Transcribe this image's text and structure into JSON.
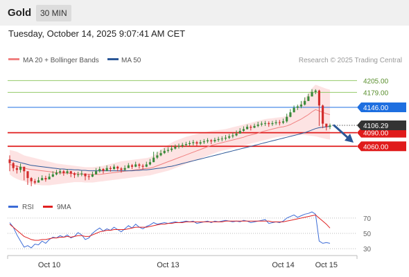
{
  "header": {
    "title": "Gold",
    "timeframe": "30 MIN"
  },
  "timestamp": "Tuesday, October 14, 2025 9:07:41 AM CET",
  "credit": "Research © 2025 Trading Central",
  "colors": {
    "ma20": "#f08080",
    "band": "#fcd9d9",
    "ma50": "#2b5797",
    "candle_up": "#3a8a3a",
    "candle_down": "#d22b2b",
    "resistance": "#92c967",
    "pivot": "#1e6fe0",
    "support": "#e01b1b",
    "rsi": "#3b6bd6",
    "rsi_ma": "#e02020",
    "arrow": "#2b5797",
    "price_box": "#333333"
  },
  "chart_data": [
    {
      "type": "candlestick",
      "legend": [
        {
          "name": "MA 20 + Bollinger Bands",
          "color": "#f08080"
        },
        {
          "name": "MA 50",
          "color": "#2b5797"
        }
      ],
      "legend_position": "top-left",
      "ylim": [
        3955,
        4230
      ],
      "x_labels": [
        {
          "label": "Oct 10",
          "index": 11
        },
        {
          "label": "Oct 13",
          "index": 44
        },
        {
          "label": "Oct 14",
          "index": 76
        },
        {
          "label": "Oct 15",
          "index": 88
        }
      ],
      "levels": [
        {
          "value": 4205.0,
          "label": "4205.00",
          "kind": "resistance"
        },
        {
          "value": 4179.0,
          "label": "4179.00",
          "kind": "resistance"
        },
        {
          "value": 4146.0,
          "label": "4146.00",
          "kind": "pivot"
        },
        {
          "value": 4090.0,
          "label": "4090.00",
          "kind": "support"
        },
        {
          "value": 4060.0,
          "label": "4060.00",
          "kind": "support"
        }
      ],
      "last_price": {
        "value": 4106.29,
        "label": "4106.29"
      },
      "projection": {
        "from": 4106,
        "to": 4065,
        "direction": "down"
      },
      "close": [
        4023,
        4012,
        4008,
        4015,
        4005,
        3990,
        3983,
        3980,
        3985,
        3990,
        3987,
        3993,
        3998,
        4002,
        4005,
        4001,
        4005,
        4000,
        3997,
        3998,
        4000,
        3994,
        3993,
        3998,
        4005,
        4010,
        4006,
        4012,
        4010,
        4015,
        4011,
        4008,
        4012,
        4018,
        4015,
        4020,
        4017,
        4015,
        4020,
        4025,
        4035,
        4040,
        4045,
        4050,
        4052,
        4055,
        4059,
        4061,
        4063,
        4065,
        4067,
        4069,
        4066,
        4069,
        4071,
        4073,
        4071,
        4074,
        4076,
        4077,
        4079,
        4082,
        4084,
        4088,
        4094,
        4098,
        4103,
        4101,
        4105,
        4108,
        4110,
        4111,
        4109,
        4111,
        4113,
        4112,
        4115,
        4125,
        4135,
        4145,
        4148,
        4152,
        4160,
        4170,
        4180,
        4183,
        4150,
        4110,
        4103,
        4106
      ],
      "high": [
        4040,
        4025,
        4018,
        4022,
        4012,
        4005,
        3992,
        3988,
        3992,
        3996,
        3995,
        4000,
        4005,
        4008,
        4010,
        4008,
        4010,
        4006,
        4003,
        4004,
        4006,
        4000,
        3999,
        4004,
        4012,
        4015,
        4012,
        4018,
        4016,
        4020,
        4017,
        4014,
        4018,
        4023,
        4021,
        4026,
        4023,
        4021,
        4026,
        4032,
        4048,
        4048,
        4052,
        4056,
        4058,
        4062,
        4064,
        4066,
        4068,
        4070,
        4072,
        4074,
        4072,
        4074,
        4076,
        4078,
        4076,
        4079,
        4081,
        4082,
        4085,
        4087,
        4090,
        4095,
        4100,
        4104,
        4108,
        4107,
        4110,
        4114,
        4115,
        4116,
        4115,
        4116,
        4118,
        4118,
        4121,
        4132,
        4142,
        4150,
        4152,
        4160,
        4168,
        4176,
        4186,
        4186,
        4185,
        4152,
        4110,
        4110
      ],
      "low": [
        4005,
        4005,
        4000,
        4002,
        3985,
        3975,
        3972,
        3976,
        3980,
        3985,
        3982,
        3988,
        3992,
        3996,
        3998,
        3995,
        3998,
        3992,
        3990,
        3992,
        3994,
        3985,
        3986,
        3992,
        3998,
        4002,
        4000,
        4005,
        4004,
        4008,
        4005,
        4002,
        4006,
        4012,
        4010,
        4014,
        4011,
        4009,
        4014,
        4018,
        4025,
        4032,
        4038,
        4043,
        4046,
        4048,
        4053,
        4055,
        4057,
        4059,
        4061,
        4062,
        4060,
        4063,
        4065,
        4067,
        4065,
        4068,
        4070,
        4071,
        4073,
        4076,
        4078,
        4082,
        4088,
        4092,
        4097,
        4095,
        4100,
        4102,
        4104,
        4105,
        4103,
        4105,
        4107,
        4106,
        4109,
        4112,
        4124,
        4135,
        4140,
        4144,
        4150,
        4160,
        4170,
        4175,
        4105,
        4100,
        4095,
        4098
      ],
      "ma20": [
        4020,
        4018,
        4016,
        4014,
        4012,
        4010,
        4009,
        4008,
        4007,
        4006,
        4005,
        4004,
        4003,
        4002,
        4001,
        4001,
        4001,
        4000,
        4000,
        3999,
        3999,
        3998,
        3998,
        3998,
        3998,
        3998,
        3999,
        4000,
        4001,
        4002,
        4003,
        4004,
        4005,
        4006,
        4007,
        4008,
        4009,
        4010,
        4011,
        4012,
        4014,
        4017,
        4020,
        4023,
        4026,
        4029,
        4032,
        4035,
        4038,
        4041,
        4044,
        4047,
        4050,
        4053,
        4056,
        4059,
        4062,
        4064,
        4066,
        4068,
        4070,
        4072,
        4074,
        4076,
        4078,
        4080,
        4083,
        4085,
        4087,
        4089,
        4092,
        4094,
        4096,
        4098,
        4100,
        4102,
        4103,
        4105,
        4108,
        4112,
        4116,
        4120,
        4125,
        4130,
        4136,
        4141,
        4138,
        4135,
        4132,
        4130
      ],
      "ma20_upper": [
        4052,
        4050,
        4048,
        4044,
        4040,
        4038,
        4036,
        4034,
        4032,
        4030,
        4028,
        4026,
        4024,
        4022,
        4021,
        4020,
        4019,
        4018,
        4017,
        4016,
        4015,
        4014,
        4014,
        4014,
        4015,
        4016,
        4017,
        4019,
        4021,
        4023,
        4025,
        4027,
        4028,
        4029,
        4030,
        4031,
        4032,
        4033,
        4034,
        4036,
        4040,
        4046,
        4052,
        4058,
        4063,
        4068,
        4072,
        4075,
        4078,
        4081,
        4083,
        4085,
        4087,
        4089,
        4090,
        4092,
        4094,
        4095,
        4096,
        4097,
        4098,
        4100,
        4102,
        4104,
        4106,
        4108,
        4110,
        4112,
        4114,
        4116,
        4118,
        4120,
        4121,
        4122,
        4123,
        4124,
        4125,
        4127,
        4131,
        4138,
        4147,
        4156,
        4166,
        4176,
        4188,
        4196,
        4193,
        4190,
        4187,
        4185
      ],
      "ma20_lower": [
        3998,
        3992,
        3988,
        3985,
        3983,
        3980,
        3978,
        3976,
        3975,
        3974,
        3974,
        3974,
        3975,
        3976,
        3977,
        3978,
        3979,
        3980,
        3981,
        3981,
        3981,
        3980,
        3980,
        3980,
        3981,
        3982,
        3983,
        3984,
        3985,
        3986,
        3987,
        3988,
        3989,
        3990,
        3991,
        3992,
        3993,
        3994,
        3995,
        3996,
        3998,
        4000,
        4002,
        4004,
        4006,
        4009,
        4012,
        4015,
        4018,
        4021,
        4024,
        4027,
        4030,
        4033,
        4036,
        4039,
        4042,
        4045,
        4048,
        4050,
        4052,
        4054,
        4056,
        4058,
        4060,
        4062,
        4064,
        4066,
        4068,
        4070,
        4072,
        4074,
        4076,
        4078,
        4080,
        4081,
        4082,
        4083,
        4084,
        4085,
        4085,
        4085,
        4085,
        4084,
        4083,
        4082,
        4080,
        4078,
        4076,
        4075
      ],
      "ma50": [
        4030,
        4028,
        4026,
        4024,
        4022,
        4020,
        4018,
        4017,
        4016,
        4015,
        4014,
        4013,
        4012,
        4011,
        4010,
        4010,
        4009,
        4009,
        4008,
        4008,
        4007,
        4007,
        4006,
        4006,
        4006,
        4006,
        4006,
        4006,
        4006,
        4006,
        4006,
        4006,
        4006,
        4006,
        4006,
        4007,
        4007,
        4008,
        4008,
        4009,
        4010,
        4011,
        4012,
        4013,
        4015,
        4016,
        4018,
        4020,
        4022,
        4024,
        4026,
        4028,
        4030,
        4032,
        4034,
        4036,
        4038,
        4040,
        4042,
        4044,
        4046,
        4048,
        4050,
        4052,
        4054,
        4056,
        4058,
        4060,
        4062,
        4064,
        4066,
        4068,
        4070,
        4072,
        4074,
        4076,
        4078,
        4080,
        4082,
        4084,
        4086,
        4088,
        4090,
        4093,
        4096,
        4099,
        4101,
        4102,
        4103,
        4104
      ]
    },
    {
      "type": "line",
      "legend": [
        {
          "name": "RSI",
          "color": "#3b6bd6"
        },
        {
          "name": "9MA",
          "color": "#e02020"
        }
      ],
      "legend_position": "top-left",
      "ylim": [
        22,
        78
      ],
      "yticks": [
        {
          "value": 70,
          "label": "70"
        },
        {
          "value": 50,
          "label": "50"
        },
        {
          "value": 30,
          "label": "30"
        }
      ],
      "rsi": [
        64,
        58,
        48,
        40,
        32,
        34,
        31,
        36,
        35,
        40,
        37,
        42,
        45,
        44,
        47,
        45,
        48,
        44,
        46,
        51,
        48,
        42,
        44,
        50,
        54,
        57,
        53,
        56,
        54,
        58,
        55,
        52,
        56,
        60,
        57,
        62,
        58,
        56,
        59,
        61,
        64,
        62,
        63,
        64,
        63,
        64,
        65,
        64,
        65,
        66,
        65,
        66,
        63,
        64,
        65,
        66,
        64,
        66,
        65,
        66,
        67,
        66,
        65,
        66,
        65,
        67,
        66,
        64,
        65,
        66,
        67,
        68,
        63,
        64,
        65,
        64,
        66,
        70,
        72,
        74,
        71,
        73,
        75,
        76,
        78,
        75,
        40,
        37,
        38,
        37
      ],
      "rsi_ma": [
        62,
        58,
        54,
        50,
        46,
        44,
        42,
        41,
        41,
        42,
        42,
        43,
        44,
        44,
        45,
        45,
        46,
        45,
        46,
        47,
        47,
        46,
        46,
        48,
        50,
        52,
        53,
        54,
        54,
        55,
        55,
        55,
        55,
        56,
        57,
        58,
        58,
        58,
        58,
        59,
        60,
        61,
        62,
        62,
        63,
        63,
        64,
        64,
        64,
        65,
        65,
        65,
        65,
        65,
        65,
        65,
        65,
        65,
        65,
        65,
        66,
        66,
        66,
        66,
        66,
        66,
        66,
        66,
        66,
        66,
        66,
        66,
        66,
        65,
        65,
        65,
        65,
        66,
        67,
        68,
        69,
        70,
        71,
        72,
        73,
        74,
        70,
        66,
        62,
        57
      ]
    }
  ]
}
